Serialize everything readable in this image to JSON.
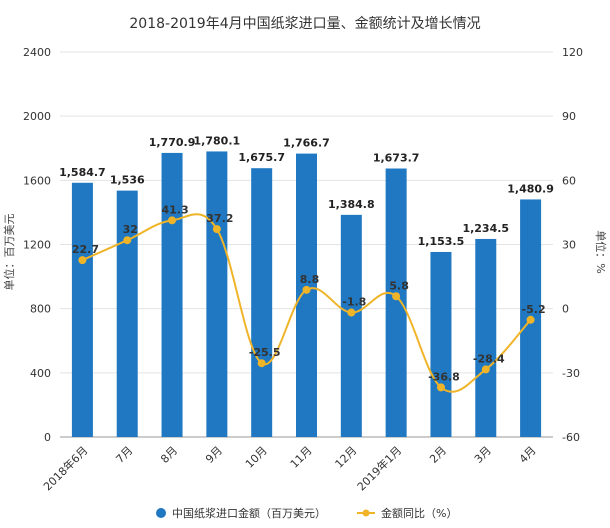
{
  "chart_data": {
    "type": "bar+line",
    "title": "2018-2019年4月中国纸浆进口量、金额统计及增长情况",
    "categories": [
      "2018年6月",
      "7月",
      "8月",
      "9月",
      "10月",
      "11月",
      "12月",
      "2019年1月",
      "2月",
      "3月",
      "4月"
    ],
    "series": [
      {
        "name": "中国纸浆进口金额（百万美元）",
        "type": "bar",
        "axis": "left",
        "color": "#1f78c1",
        "values": [
          1584.7,
          1536,
          1770.9,
          1780.1,
          1675.7,
          1766.7,
          1384.8,
          1673.7,
          1153.5,
          1234.5,
          1480.9
        ],
        "labels": [
          "1,584.7",
          "1,536",
          "1,770.9",
          "1,780.1",
          "1,675.7",
          "1,766.7",
          "1,384.8",
          "1,673.7",
          "1,153.5",
          "1,234.5",
          "1,480.9"
        ]
      },
      {
        "name": "金额同比（%）",
        "type": "line",
        "axis": "right",
        "color": "#f0b429",
        "values": [
          22.7,
          32,
          41.3,
          37.2,
          -25.5,
          8.8,
          -1.8,
          5.8,
          -36.8,
          -28.4,
          -5.2
        ],
        "labels": [
          "22.7",
          "32",
          "41.3",
          "37.2",
          "-25.5",
          "8.8",
          "-1.8",
          "5.8",
          "-36.8",
          "-28.4",
          "-5.2"
        ]
      }
    ],
    "y_left": {
      "label": "单位：百万美元",
      "ylim": [
        0,
        2400
      ],
      "ticks": [
        "0",
        "400",
        "800",
        "1200",
        "1600",
        "2000",
        "2400"
      ]
    },
    "y_right": {
      "label": "单位：%",
      "ylim": [
        -60,
        120
      ],
      "ticks": [
        "-60",
        "-30",
        "0",
        "30",
        "60",
        "90",
        "120"
      ]
    },
    "grid": true,
    "legend": "bottom"
  }
}
